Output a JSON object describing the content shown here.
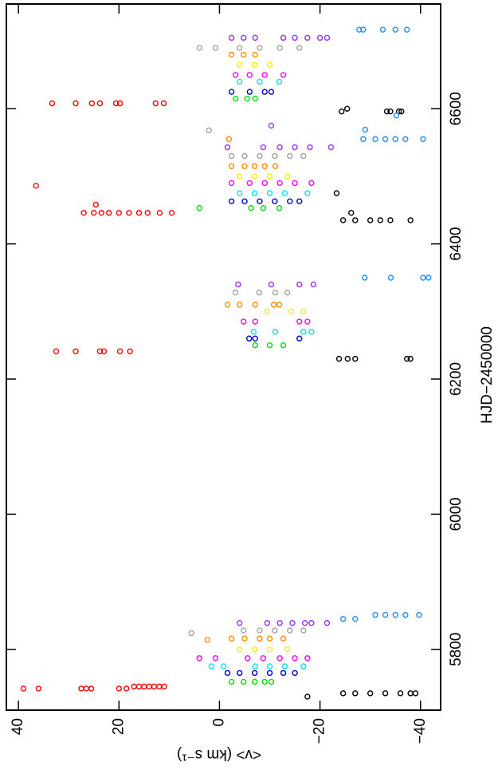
{
  "chart_data": {
    "type": "scatter",
    "xlabel": "HJD−2450000",
    "ylabel": "<v> (km s⁻¹)",
    "xlim": [
      5710,
      6755
    ],
    "ylim": [
      -44,
      42.4
    ],
    "xticks": [
      5800,
      6000,
      6200,
      6400,
      6600
    ],
    "yticks": [
      {
        "value": -40,
        "label": "−40"
      },
      {
        "value": -20,
        "label": "−20"
      },
      0,
      20,
      40
    ],
    "series": [
      {
        "color": "#ff0000",
        "x": [
          5742,
          5742,
          5742,
          5742,
          5742,
          5742,
          5742,
          5745,
          5745,
          5745,
          5745,
          5745,
          5745,
          5745,
          6241,
          6241,
          6241,
          6241,
          6241,
          6241,
          6446,
          6446,
          6446,
          6446,
          6446,
          6446,
          6446,
          6446,
          6446,
          6446,
          6458,
          6486,
          6608,
          6608,
          6608,
          6608,
          6608,
          6608,
          6608,
          6608
        ],
        "values": [
          39,
          36,
          27.5,
          26.5,
          25.5,
          20,
          18.5,
          17,
          16,
          15,
          14,
          13,
          12,
          11,
          32.5,
          28.6,
          23.8,
          23,
          19.8,
          17.8,
          27,
          25,
          23.5,
          22,
          20,
          18,
          16,
          14.3,
          11.9,
          9.5,
          24.6,
          36.5,
          33.3,
          28.6,
          25.4,
          23.8,
          20.6,
          19.8,
          12.7,
          11.1
        ]
      },
      {
        "color": "#000000",
        "x": [
          5730,
          5735,
          5735,
          5735,
          5735,
          5735,
          5735,
          5735,
          6230,
          6230,
          6230,
          6230,
          6230,
          6435,
          6435,
          6435,
          6435,
          6435,
          6435,
          6475,
          6446,
          6596,
          6596,
          6596,
          6596,
          6596,
          6600
        ],
        "values": [
          -17.5,
          -24.6,
          -27,
          -30,
          -33,
          -36,
          -38,
          -39,
          -23.8,
          -25.5,
          -27,
          -37.3,
          -38,
          -24.6,
          -27,
          -30,
          -32,
          -34,
          -38,
          -23.3,
          -26.2,
          -24.3,
          -33.3,
          -34,
          -35.7,
          -36.2,
          -25.4
        ]
      },
      {
        "color": "#1e90ff",
        "x": [
          5851,
          5851,
          5851,
          5851,
          5851,
          5845,
          5845,
          6350,
          6350,
          6350,
          6350,
          6555,
          6555,
          6555,
          6555,
          6555,
          6555,
          6569,
          6590,
          6717,
          6717,
          6717,
          6717,
          6717
        ],
        "values": [
          -31,
          -33,
          -35,
          -37,
          -39.7,
          -24.6,
          -27,
          -28.9,
          -34.1,
          -40.5,
          -41.6,
          -28.6,
          -31,
          -33,
          -35,
          -37,
          -40.5,
          -29,
          -35.2,
          -27.8,
          -28.6,
          -32.5,
          -35,
          -37.3
        ]
      },
      {
        "color": "#9b30ff",
        "x": [
          5839,
          5839,
          5839,
          5839,
          5839,
          5839,
          5839,
          6340,
          6340,
          6340,
          6340,
          6543,
          6543,
          6543,
          6543,
          6543,
          6543,
          6575,
          6705,
          6705,
          6705,
          6705,
          6705,
          6705,
          6705,
          6705
        ],
        "values": [
          -4,
          -9.5,
          -12,
          -14.5,
          -17,
          -18.3,
          -21.4,
          -3.7,
          -10.3,
          -15.9,
          -18.7,
          -1.6,
          -8.7,
          -12,
          -15,
          -18,
          -22.2,
          -10.3,
          -2.4,
          -4.8,
          -7.1,
          -12.7,
          -15,
          -17.5,
          -20,
          -21.4
        ]
      },
      {
        "color": "#a0a0a0",
        "x": [
          5824,
          5828,
          5828,
          5828,
          5828,
          5828,
          6328,
          6328,
          6328,
          6328,
          6530,
          6530,
          6530,
          6530,
          6530,
          6530,
          6568,
          6690,
          6690,
          6690,
          6690,
          6690,
          6690
        ],
        "values": [
          5.6,
          -4.8,
          -8,
          -11,
          -14,
          -16.7,
          -3.2,
          -7.9,
          -11.1,
          -13.5,
          -2.4,
          -5,
          -8,
          -11,
          -14,
          -16.7,
          2.1,
          4,
          0.8,
          -4,
          -8,
          -12,
          -15.9
        ]
      },
      {
        "color": "#ff8c00",
        "x": [
          5814,
          5816,
          5816,
          5816,
          5816,
          5816,
          6310,
          6310,
          6310,
          6310,
          6310,
          6515,
          6515,
          6515,
          6515,
          6515,
          6555,
          6680,
          6680,
          6680
        ],
        "values": [
          2.4,
          -2.4,
          -5,
          -8,
          -10,
          -12.7,
          -1.6,
          -4,
          -7.1,
          -10.8,
          -11.9,
          -2.4,
          -5,
          -7,
          -9,
          -11.1,
          -1.9,
          -2.4,
          -4.8,
          -7.1
        ]
      },
      {
        "color": "#ffee00",
        "x": [
          5800,
          5800,
          5800,
          5800,
          6300,
          6300,
          6300,
          6500,
          6500,
          6500,
          6500,
          6665,
          6665,
          6665
        ],
        "values": [
          -4,
          -7,
          -10,
          -13.5,
          -9.5,
          -14.3,
          -16.7,
          -4,
          -7,
          -10,
          -13.5,
          -4,
          -7,
          -10
        ]
      },
      {
        "color": "#ff00ff",
        "x": [
          5787,
          5787,
          5787,
          5787,
          5787,
          5787,
          5787,
          6285,
          6285,
          6285,
          6285,
          6490,
          6490,
          6490,
          6490,
          6490,
          6490,
          6650,
          6650,
          6650,
          6650
        ],
        "values": [
          4,
          0.8,
          -5.6,
          -8.7,
          -12,
          -15,
          -17.5,
          -4.8,
          -7.1,
          -15.9,
          -17.5,
          -2.4,
          -6,
          -9,
          -12,
          -15,
          -18.3,
          -3.2,
          -6,
          -9,
          -12.7
        ]
      },
      {
        "color": "#00e5ee",
        "x": [
          5775,
          5775,
          5775,
          5775,
          5775,
          5775,
          6270,
          6270,
          6270,
          6270,
          6475,
          6475,
          6475,
          6475,
          6475,
          6640,
          6640,
          6640
        ],
        "values": [
          1.6,
          -0.8,
          -7.1,
          -10,
          -13,
          -16.7,
          -6.8,
          -11.1,
          -16.7,
          -18.3,
          -4,
          -7,
          -10,
          -13,
          -17.5,
          -4,
          -8,
          -11.9
        ]
      },
      {
        "color": "#0000cd",
        "x": [
          5765,
          5765,
          5765,
          5765,
          5765,
          5765,
          6260,
          6260,
          6260,
          6463,
          6463,
          6463,
          6463,
          6463,
          6463,
          6625,
          6625,
          6625,
          6625
        ],
        "values": [
          -1.6,
          -4,
          -7,
          -10,
          -12.7,
          -15,
          -5.9,
          -7.1,
          -15.9,
          -2.4,
          -5,
          -8,
          -11,
          -14,
          -15.9,
          -2.4,
          -6,
          -9,
          -10.3
        ]
      },
      {
        "color": "#00dd00",
        "x": [
          5752,
          5752,
          5752,
          5752,
          5752,
          6250,
          6250,
          6250,
          6453,
          6453,
          6453,
          6453,
          6615,
          6615,
          6615
        ],
        "values": [
          -2.4,
          -4.8,
          -7,
          -9,
          -10.3,
          -7.1,
          -10,
          -12.7,
          4,
          -6.3,
          -8.7,
          -11.9,
          -3.2,
          -5.5,
          -7.1
        ]
      }
    ]
  }
}
